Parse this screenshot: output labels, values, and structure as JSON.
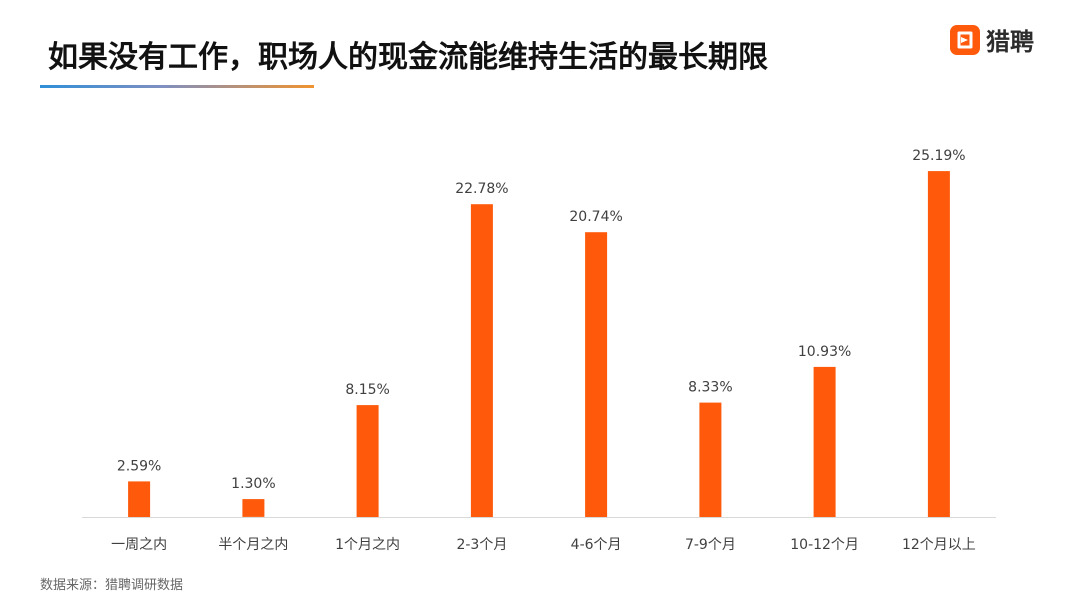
{
  "title": "如果没有工作，职场人的现金流能维持生活的最长期限",
  "logo": {
    "text": "猎聘",
    "icon": "liepin-logo-icon",
    "color": "#ff5a0b"
  },
  "source": "数据来源：猎聘调研数据",
  "colors": {
    "bar": "#ff5a0b",
    "axis": "#d9d9d9",
    "label": "#404040",
    "tick": "#404040"
  },
  "chart_data": {
    "type": "bar",
    "categories": [
      "一周之内",
      "半个月之内",
      "1个月之内",
      "2-3个月",
      "4-6个月",
      "7-9个月",
      "10-12个月",
      "12个月以上"
    ],
    "values": [
      2.59,
      1.3,
      8.15,
      22.78,
      20.74,
      8.33,
      10.93,
      25.19
    ],
    "value_labels": [
      "2.59%",
      "1.30%",
      "8.15%",
      "22.78%",
      "20.74%",
      "8.33%",
      "10.93%",
      "25.19%"
    ],
    "title": "如果没有工作，职场人的现金流能维持生活的最长期限",
    "xlabel": "",
    "ylabel": "",
    "ylim": [
      0,
      26
    ],
    "grid": false,
    "legend": "none"
  }
}
